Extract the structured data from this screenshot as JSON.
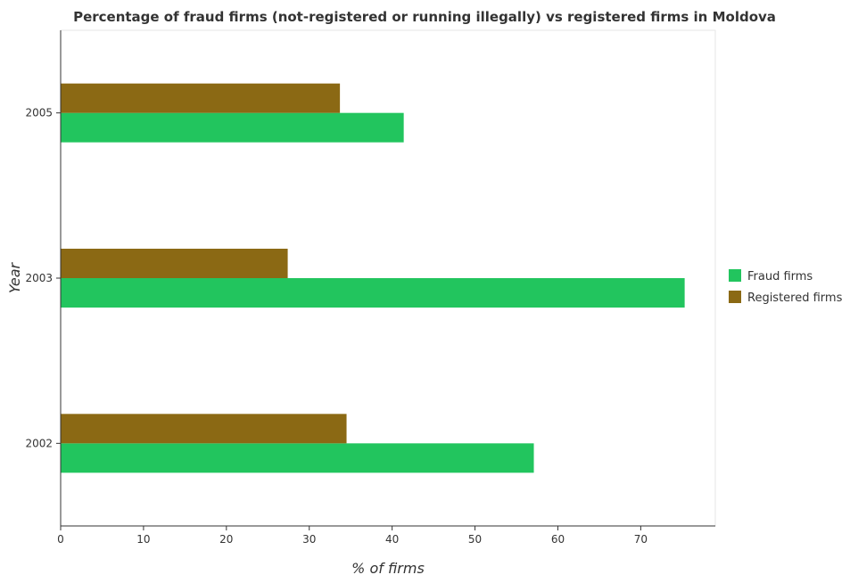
{
  "chart_data": {
    "type": "bar",
    "orientation": "horizontal",
    "title": "Percentage of fraud firms (not-registered or running illegally) vs registered firms in Moldova",
    "xlabel": "% of firms",
    "ylabel": "Year",
    "categories": [
      "2002",
      "2003",
      "2005"
    ],
    "series": [
      {
        "name": "Fraud firms",
        "color": "#22c55e",
        "values": [
          57.1,
          75.3,
          41.4
        ]
      },
      {
        "name": "Registered firms",
        "color": "#8b6914",
        "values": [
          34.5,
          27.4,
          33.7
        ]
      }
    ],
    "xlim": [
      0,
      79
    ],
    "xticks": [
      0,
      10,
      20,
      30,
      40,
      50,
      60,
      70
    ],
    "grid": false,
    "legend_position": "right"
  }
}
